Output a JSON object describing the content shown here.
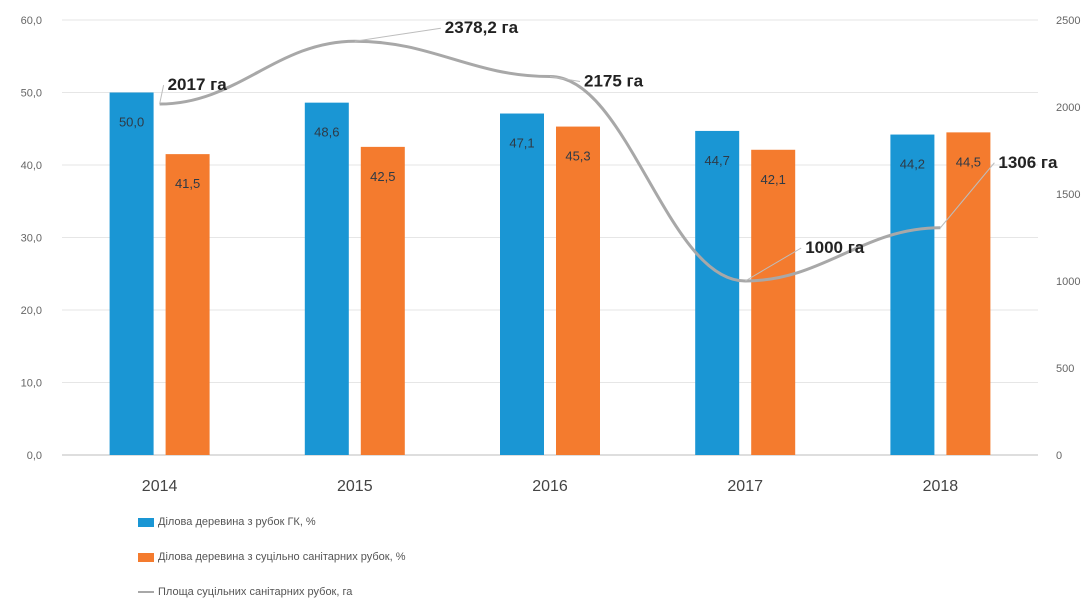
{
  "chart_data": {
    "type": "bar",
    "categories": [
      "2014",
      "2015",
      "2016",
      "2017",
      "2018"
    ],
    "series": [
      {
        "name": "Ділова деревина з рубок ГК, %",
        "values": [
          50.0,
          48.6,
          47.1,
          44.7,
          44.2
        ],
        "labels": [
          "50,0",
          "48,6",
          "47,1",
          "44,7",
          "44,2"
        ],
        "color": "#1a96d4",
        "axis": "left"
      },
      {
        "name": "Ділова деревина з суцільно санітарних рубок, %",
        "values": [
          41.5,
          42.5,
          45.3,
          42.1,
          44.5
        ],
        "labels": [
          "41,5",
          "42,5",
          "45,3",
          "42,1",
          "44,5"
        ],
        "color": "#f47b2e",
        "axis": "left"
      },
      {
        "name": "Площа суцільних санітарних рубок, га",
        "type": "line",
        "values": [
          2017,
          2378.2,
          2175,
          1000,
          1306
        ],
        "labels": [
          "2017 га",
          "2378,2 га",
          "2175 га",
          "1000 га",
          "1306 га"
        ],
        "color": "#a8a8a8",
        "axis": "right"
      }
    ],
    "y_left": {
      "ylim": [
        0,
        60
      ],
      "ticks": [
        "0,0",
        "10,0",
        "20,0",
        "30,0",
        "40,0",
        "50,0",
        "60,0"
      ]
    },
    "y_right": {
      "ylim": [
        0,
        2500
      ],
      "ticks": [
        "0",
        "500",
        "1000",
        "1500",
        "2000",
        "2500"
      ]
    },
    "grid": true,
    "legend_position": "bottom-left"
  },
  "legend": {
    "item1": "Ділова деревина з рубок ГК, %",
    "item2": "Ділова деревина з суцільно санітарних рубок, %",
    "item3": "Площа суцільних санітарних рубок, га"
  }
}
